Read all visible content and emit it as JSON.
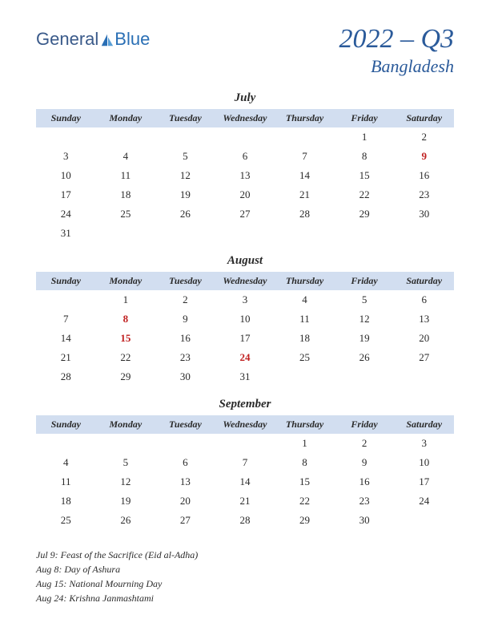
{
  "logo": {
    "text1": "General",
    "text2": "Blue"
  },
  "title": {
    "period": "2022 – Q3",
    "country": "Bangladesh"
  },
  "colors": {
    "header_bg": "#d2def0",
    "title_color": "#2a5a9a",
    "holiday_color": "#c02020",
    "text_color": "#2a2a2a",
    "logo_general": "#3a5a8a",
    "logo_blue": "#2a6fb5"
  },
  "day_headers": [
    "Sunday",
    "Monday",
    "Tuesday",
    "Wednesday",
    "Thursday",
    "Friday",
    "Saturday"
  ],
  "months": [
    {
      "name": "July",
      "weeks": [
        [
          "",
          "",
          "",
          "",
          "",
          "1",
          "2"
        ],
        [
          "3",
          "4",
          "5",
          "6",
          "7",
          "8",
          "9"
        ],
        [
          "10",
          "11",
          "12",
          "13",
          "14",
          "15",
          "16"
        ],
        [
          "17",
          "18",
          "19",
          "20",
          "21",
          "22",
          "23"
        ],
        [
          "24",
          "25",
          "26",
          "27",
          "28",
          "29",
          "30"
        ],
        [
          "31",
          "",
          "",
          "",
          "",
          "",
          ""
        ]
      ],
      "holidays": [
        "9"
      ]
    },
    {
      "name": "August",
      "weeks": [
        [
          "",
          "1",
          "2",
          "3",
          "4",
          "5",
          "6"
        ],
        [
          "7",
          "8",
          "9",
          "10",
          "11",
          "12",
          "13"
        ],
        [
          "14",
          "15",
          "16",
          "17",
          "18",
          "19",
          "20"
        ],
        [
          "21",
          "22",
          "23",
          "24",
          "25",
          "26",
          "27"
        ],
        [
          "28",
          "29",
          "30",
          "31",
          "",
          "",
          ""
        ]
      ],
      "holidays": [
        "8",
        "15",
        "24"
      ]
    },
    {
      "name": "September",
      "weeks": [
        [
          "",
          "",
          "",
          "",
          "1",
          "2",
          "3"
        ],
        [
          "4",
          "5",
          "6",
          "7",
          "8",
          "9",
          "10"
        ],
        [
          "11",
          "12",
          "13",
          "14",
          "15",
          "16",
          "17"
        ],
        [
          "18",
          "19",
          "20",
          "21",
          "22",
          "23",
          "24"
        ],
        [
          "25",
          "26",
          "27",
          "28",
          "29",
          "30",
          ""
        ]
      ],
      "holidays": []
    }
  ],
  "holiday_list": [
    "Jul 9: Feast of the Sacrifice (Eid al-Adha)",
    "Aug 8: Day of Ashura",
    "Aug 15: National Mourning Day",
    "Aug 24: Krishna Janmashtami"
  ]
}
